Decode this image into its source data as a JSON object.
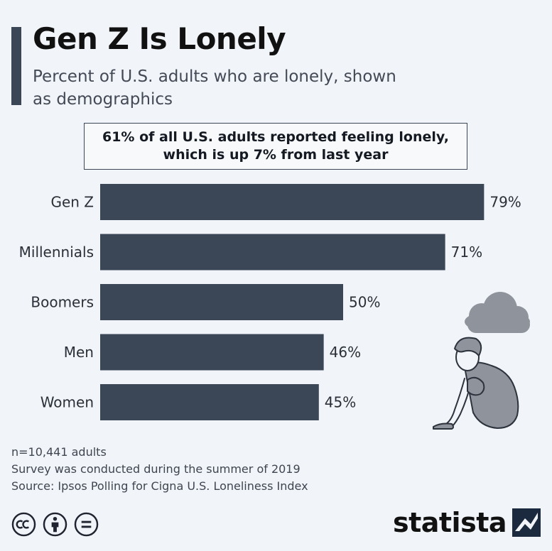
{
  "header": {
    "title": "Gen Z Is Lonely",
    "subtitle": "Percent of U.S. adults who are lonely, shown as demographics"
  },
  "callout": {
    "line1": "61% of all U.S. adults reported feeling lonely,",
    "line2": "which is up 7% from last year"
  },
  "chart_data": {
    "type": "bar",
    "orientation": "horizontal",
    "categories": [
      "Gen Z",
      "Millennials",
      "Boomers",
      "Men",
      "Women"
    ],
    "values": [
      79,
      71,
      50,
      46,
      45
    ],
    "value_labels": [
      "79%",
      "71%",
      "50%",
      "46%",
      "45%"
    ],
    "unit": "%",
    "title": "Gen Z Is Lonely",
    "subtitle": "Percent of U.S. adults who are lonely, shown as demographics",
    "xlabel": "",
    "ylabel": "",
    "xlim": [
      0,
      100
    ],
    "grid": false,
    "bar_color": "#3b4657"
  },
  "footer": {
    "notes": [
      "n=10,441 adults",
      "Survey was conducted during the summer of 2019",
      "Source: Ipsos Polling for Cigna U.S. Loneliness Index"
    ],
    "license_icons": [
      "creative-commons-icon",
      "attribution-icon",
      "no-derivatives-icon"
    ],
    "brand": "statista"
  },
  "colors": {
    "background": "#f1f4f8",
    "accent": "#3b4657",
    "illustration_fill": "#8f949c"
  }
}
